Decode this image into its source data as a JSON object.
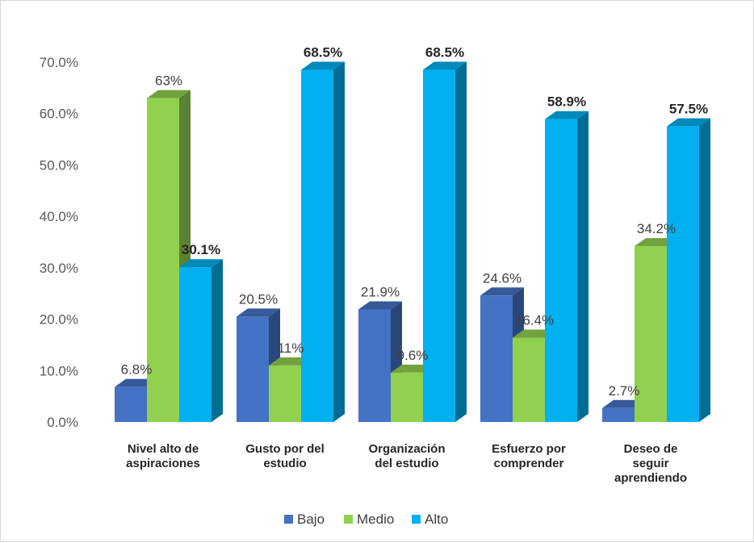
{
  "chart_data": {
    "type": "bar",
    "categories": [
      [
        "Nivel alto de",
        "aspiraciones"
      ],
      [
        "Gusto por  del",
        "estudio"
      ],
      [
        "Organización",
        "del estudio"
      ],
      [
        "Esfuerzo por",
        "comprender"
      ],
      [
        "Deseo de",
        "seguir",
        "aprendiendo"
      ]
    ],
    "series": [
      {
        "name": "Bajo",
        "color": "#4472C4",
        "values": [
          6.8,
          20.5,
          21.9,
          24.6,
          2.7
        ],
        "labels": [
          "6.8%",
          "20.5%",
          "21.9%",
          "24.6%",
          "2.7%"
        ],
        "label_bold": false
      },
      {
        "name": "Medio",
        "color": "#92D050",
        "values": [
          63,
          11,
          9.6,
          16.4,
          34.2
        ],
        "labels": [
          "63%",
          "11%",
          "9.6%",
          "16.4%",
          "34.2%"
        ],
        "label_bold": false
      },
      {
        "name": "Alto",
        "color": "#00B0F0",
        "values": [
          30.1,
          68.5,
          68.5,
          58.9,
          57.5
        ],
        "labels": [
          "30.1%",
          "68.5%",
          "68.5%",
          "58.9%",
          "57.5%"
        ],
        "label_bold": true
      }
    ],
    "ylim": [
      0,
      70
    ],
    "yticks": [
      "0.0%",
      "10.0%",
      "20.0%",
      "30.0%",
      "40.0%",
      "50.0%",
      "60.0%",
      "70.0%"
    ],
    "grid": false,
    "legend_position": "bottom",
    "style": "3d-clustered-column"
  }
}
